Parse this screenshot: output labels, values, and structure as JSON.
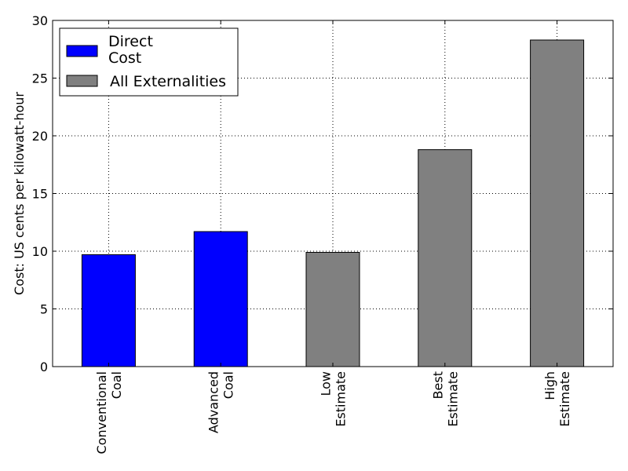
{
  "chart_data": {
    "type": "bar",
    "title": "",
    "xlabel": "",
    "ylabel": "Cost: US cents per kilowatt-hour",
    "ylim": [
      0,
      30
    ],
    "yticks": [
      0,
      5,
      10,
      15,
      20,
      25,
      30
    ],
    "grid": true,
    "legend_placement": "top-left",
    "categories": [
      [
        "Conventional",
        "Coal"
      ],
      [
        "Advanced",
        "Coal"
      ],
      [
        "Low",
        "Estimate"
      ],
      [
        "Best",
        "Estimate"
      ],
      [
        "High",
        "Estimate"
      ]
    ],
    "values": [
      9.7,
      11.7,
      9.9,
      18.8,
      28.3
    ],
    "bar_series": [
      0,
      0,
      1,
      1,
      1
    ],
    "series": [
      {
        "name": "Direct Cost",
        "name_lines": [
          "Direct",
          "Cost"
        ],
        "color": "#0000ff"
      },
      {
        "name": "All Externalities",
        "name_lines": [
          "All Externalities"
        ],
        "color": "#808080"
      }
    ]
  }
}
